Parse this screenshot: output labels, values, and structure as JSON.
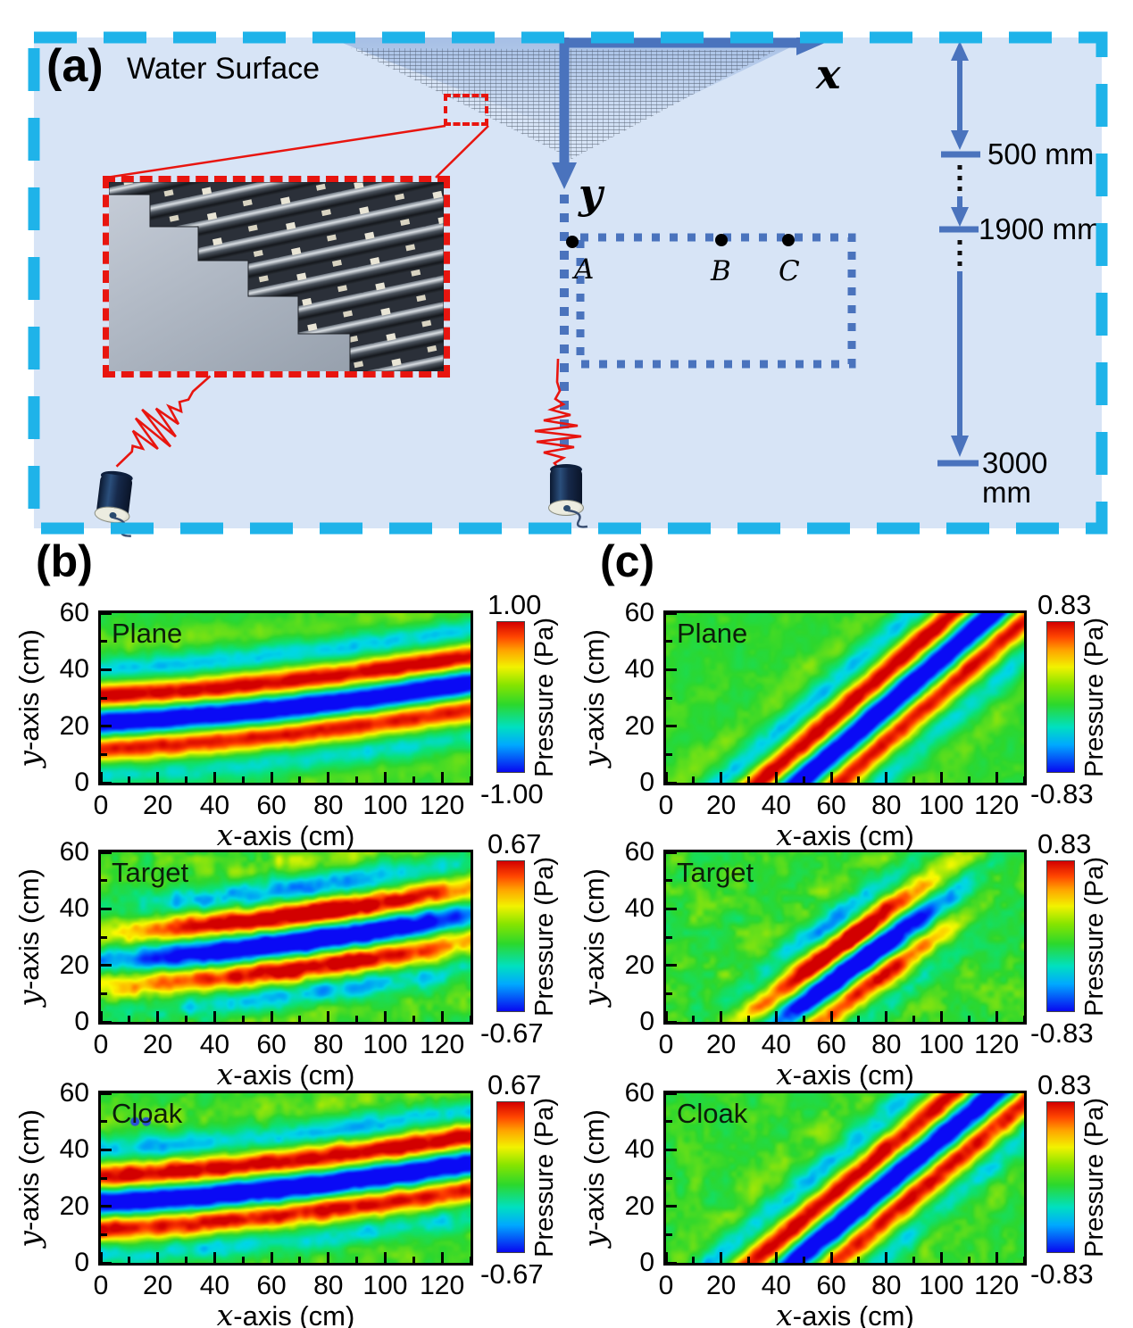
{
  "panel_a": {
    "label": "(a)",
    "water_surface": "Water Surface",
    "x_axis_var": "x",
    "y_axis_var": "y",
    "point_a": "A",
    "point_b": "B",
    "point_c": "C",
    "dim_500": "500 mm",
    "dim_1900": "1900 mm",
    "dim_3000": "3000 mm"
  },
  "panel_b": {
    "label": "(b)"
  },
  "panel_c": {
    "label": "(c)"
  },
  "axis": {
    "x_var": "x",
    "x_rest": "-axis (cm)",
    "y_var": "y",
    "y_rest": "-axis (cm)"
  },
  "colorbar_label": "Pressure (Pa)",
  "colors": {
    "panel_bg": "#d7e4f6",
    "border_cyan": "#1fb3e9",
    "axis_blue": "#4a73bd",
    "red": "#e8150f"
  },
  "chart_data": [
    {
      "panel": "b",
      "title": "Plane",
      "type": "heatmap",
      "x_label": "x-axis (cm)",
      "y_label": "y-axis (cm)",
      "x_range": [
        0,
        130
      ],
      "y_range": [
        0,
        60
      ],
      "x_ticks": [
        0,
        20,
        40,
        60,
        80,
        100,
        120
      ],
      "y_ticks": [
        0,
        20,
        40,
        60
      ],
      "colorbar": {
        "label": "Pressure (Pa)",
        "max": "1.00",
        "min": "-1.00",
        "vmax": 1.0,
        "vmin": -1.0
      },
      "description": "Plane wave propagating upward; red crest from y=31cm at x=0 curving to y=45cm at x=130, blue trough 10cm below, orange crest 20cm below",
      "wave": {
        "m": 0.05,
        "curv": 0.00045,
        "b": 31,
        "lambda": 20,
        "u0": -9,
        "sigma_u": 13,
        "xc": 65,
        "yc": 33,
        "sigma_v": 9999,
        "amp": 1.3,
        "noise": 0.11,
        "seed": 3
      }
    },
    {
      "panel": "b",
      "title": "Target",
      "type": "heatmap",
      "x_label": "x-axis (cm)",
      "y_label": "y-axis (cm)",
      "x_range": [
        0,
        130
      ],
      "y_range": [
        0,
        60
      ],
      "x_ticks": [
        0,
        20,
        40,
        60,
        80,
        100,
        120
      ],
      "y_ticks": [
        0,
        20,
        40,
        60
      ],
      "colorbar": {
        "label": "Pressure (Pa)",
        "max": "0.67",
        "min": "-0.67",
        "vmax": 0.67,
        "vmin": -0.67
      },
      "description": "Scattered wave field with bare target; broken red/blue bands strongest for x=40-110cm",
      "wave": {
        "m": 0.06,
        "curv": 0.0005,
        "b": 31.5,
        "lambda": 20,
        "u0": -9,
        "sigma_u": 14,
        "xc": 72,
        "yc": 30,
        "sigma_v": 52,
        "amp": 1.5,
        "noise": 0.22,
        "seed": 11
      }
    },
    {
      "panel": "b",
      "title": "Cloak",
      "type": "heatmap",
      "x_label": "x-axis (cm)",
      "y_label": "y-axis (cm)",
      "x_range": [
        0,
        130
      ],
      "y_range": [
        0,
        60
      ],
      "x_ticks": [
        0,
        20,
        40,
        60,
        80,
        100,
        120
      ],
      "y_ticks": [
        0,
        20,
        40,
        60
      ],
      "colorbar": {
        "label": "Pressure (Pa)",
        "max": "0.67",
        "min": "-0.67",
        "vmax": 0.67,
        "vmin": -0.67
      },
      "description": "Restored plane-wave pattern with cloaked target, similar to Plane case but noisier",
      "artifact_dots": [
        [
          12,
          50
        ],
        [
          16,
          50
        ]
      ],
      "wave": {
        "m": 0.05,
        "curv": 0.00045,
        "b": 31,
        "lambda": 20,
        "u0": -9,
        "sigma_u": 13,
        "xc": 65,
        "yc": 33,
        "sigma_v": 9999,
        "amp": 1.35,
        "noise": 0.17,
        "seed": 21
      }
    },
    {
      "panel": "c",
      "title": "Plane",
      "type": "heatmap",
      "x_label": "x-axis (cm)",
      "y_label": "y-axis (cm)",
      "x_range": [
        0,
        130
      ],
      "y_range": [
        0,
        60
      ],
      "x_ticks": [
        0,
        20,
        40,
        60,
        80,
        100,
        120
      ],
      "y_ticks": [
        0,
        20,
        40,
        60
      ],
      "colorbar": {
        "label": "Pressure (Pa)",
        "max": "0.83",
        "min": "-0.83",
        "vmax": 0.83,
        "vmin": -0.83
      },
      "description": "Oblique plane wave; red crest along y=0.85x-28, blue trough below-right, yellow crest further",
      "wave": {
        "m": 0.85,
        "curv": 0,
        "b": -28,
        "lambda": 20,
        "u0": -9,
        "sigma_u": 13,
        "xc": 70,
        "yc": 31,
        "sigma_v": 9999,
        "amp": 1.35,
        "noise": 0.11,
        "seed": 31
      }
    },
    {
      "panel": "c",
      "title": "Target",
      "type": "heatmap",
      "x_label": "x-axis (cm)",
      "y_label": "y-axis (cm)",
      "x_range": [
        0,
        130
      ],
      "y_range": [
        0,
        60
      ],
      "x_ticks": [
        0,
        20,
        40,
        60,
        80,
        100,
        120
      ],
      "y_ticks": [
        0,
        20,
        40,
        60
      ],
      "colorbar": {
        "label": "Pressure (Pa)",
        "max": "0.83",
        "min": "-0.83",
        "vmax": 0.83,
        "vmin": -0.83
      },
      "description": "Localized oblique packet around (65,25)cm with strong red crest and blue trough",
      "wave": {
        "m": 0.72,
        "curv": 0,
        "b": -18,
        "lambda": 19,
        "u0": -7,
        "sigma_u": 11,
        "xc": 65,
        "yc": 25,
        "sigma_v": 30,
        "amp": 1.6,
        "noise": 0.2,
        "seed": 41
      }
    },
    {
      "panel": "c",
      "title": "Cloak",
      "type": "heatmap",
      "x_label": "x-axis (cm)",
      "y_label": "y-axis (cm)",
      "x_range": [
        0,
        130
      ],
      "y_range": [
        0,
        60
      ],
      "x_ticks": [
        0,
        20,
        40,
        60,
        80,
        100,
        120
      ],
      "y_ticks": [
        0,
        20,
        40,
        60
      ],
      "colorbar": {
        "label": "Pressure (Pa)",
        "max": "0.83",
        "min": "-0.83",
        "vmax": 0.83,
        "vmin": -0.83
      },
      "description": "Restored oblique plane wave with cloak; red crest along y=0.82x-25",
      "wave": {
        "m": 0.82,
        "curv": 0,
        "b": -25,
        "lambda": 20,
        "u0": -9,
        "sigma_u": 13,
        "xc": 70,
        "yc": 30,
        "sigma_v": 9999,
        "amp": 1.3,
        "noise": 0.16,
        "seed": 51
      }
    }
  ]
}
